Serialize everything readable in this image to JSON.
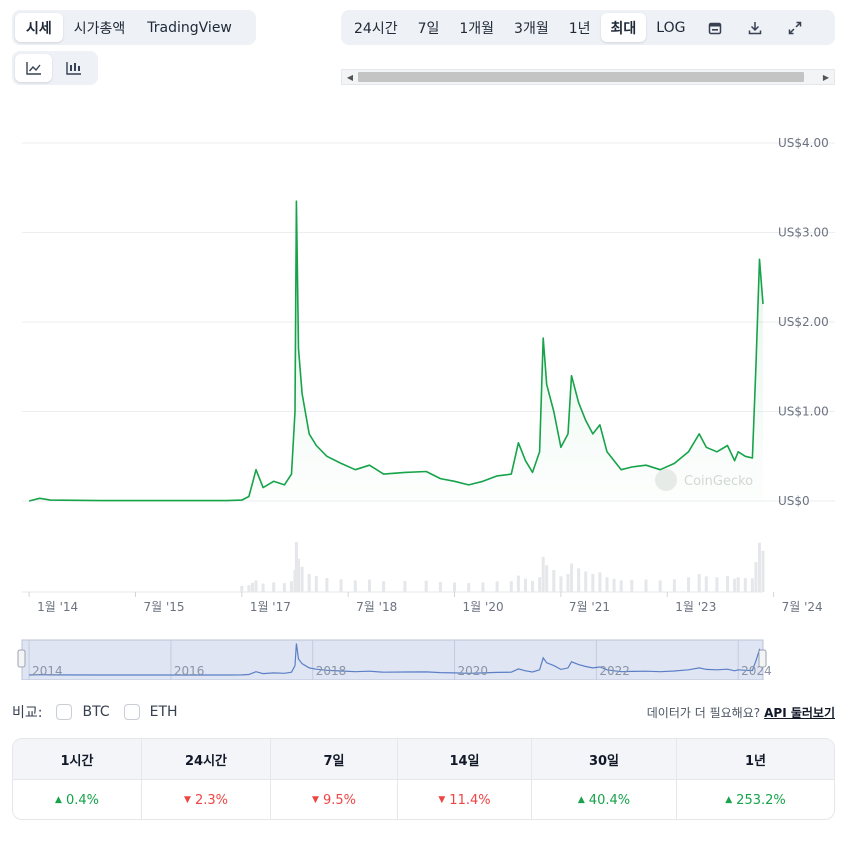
{
  "view_tabs": [
    "시세",
    "시가총액",
    "TradingView"
  ],
  "view_active": "시세",
  "chart_types": [
    {
      "icon": "line-chart-icon",
      "active": true
    },
    {
      "icon": "candlestick-chart-icon",
      "active": false
    }
  ],
  "range_tabs": [
    "24시간",
    "7일",
    "1개월",
    "3개월",
    "1년",
    "최대",
    "LOG"
  ],
  "range_active": "최대",
  "toolbar_icons": [
    "calendar-icon",
    "download-icon",
    "fullscreen-icon"
  ],
  "scroll_arrows": {
    "left": "◀",
    "right": "▶"
  },
  "watermark": "CoinGecko",
  "compare": {
    "label": "비교:",
    "options": [
      "BTC",
      "ETH"
    ],
    "more_text": "데이터가 더 필요해요?",
    "api_link": "API 둘러보기"
  },
  "performance": [
    {
      "period": "1시간",
      "change": "0.4%",
      "direction": "up"
    },
    {
      "period": "24시간",
      "change": "2.3%",
      "direction": "down"
    },
    {
      "period": "7일",
      "change": "9.5%",
      "direction": "down"
    },
    {
      "period": "14일",
      "change": "11.4%",
      "direction": "down"
    },
    {
      "period": "30일",
      "change": "40.4%",
      "direction": "up"
    },
    {
      "period": "1년",
      "change": "253.2%",
      "direction": "up"
    }
  ],
  "colors": {
    "line": "#16a34a",
    "volume": "#e5e7eb",
    "navigator_line": "#5b7fc7",
    "navigator_bg": "#dfe5f2",
    "up": "#16a34a",
    "down": "#ef4444"
  },
  "chart_data": {
    "type": "line",
    "series": [
      {
        "values": [
          [
            2014.0,
            0.0
          ],
          [
            2014.15,
            0.03
          ],
          [
            2014.3,
            0.01
          ],
          [
            2015.0,
            0.005
          ],
          [
            2016.0,
            0.005
          ],
          [
            2016.8,
            0.005
          ],
          [
            2017.0,
            0.01
          ],
          [
            2017.1,
            0.05
          ],
          [
            2017.15,
            0.2
          ],
          [
            2017.2,
            0.35
          ],
          [
            2017.3,
            0.15
          ],
          [
            2017.45,
            0.22
          ],
          [
            2017.6,
            0.18
          ],
          [
            2017.7,
            0.3
          ],
          [
            2017.75,
            1.0
          ],
          [
            2017.77,
            3.35
          ],
          [
            2017.8,
            1.7
          ],
          [
            2017.85,
            1.2
          ],
          [
            2017.95,
            0.75
          ],
          [
            2018.05,
            0.62
          ],
          [
            2018.2,
            0.5
          ],
          [
            2018.4,
            0.42
          ],
          [
            2018.6,
            0.35
          ],
          [
            2018.8,
            0.4
          ],
          [
            2019.0,
            0.3
          ],
          [
            2019.3,
            0.32
          ],
          [
            2019.6,
            0.33
          ],
          [
            2019.8,
            0.25
          ],
          [
            2020.0,
            0.22
          ],
          [
            2020.2,
            0.18
          ],
          [
            2020.4,
            0.22
          ],
          [
            2020.6,
            0.28
          ],
          [
            2020.8,
            0.3
          ],
          [
            2020.9,
            0.65
          ],
          [
            2021.0,
            0.45
          ],
          [
            2021.1,
            0.32
          ],
          [
            2021.2,
            0.55
          ],
          [
            2021.25,
            1.82
          ],
          [
            2021.3,
            1.3
          ],
          [
            2021.4,
            1.0
          ],
          [
            2021.5,
            0.6
          ],
          [
            2021.6,
            0.75
          ],
          [
            2021.65,
            1.4
          ],
          [
            2021.75,
            1.1
          ],
          [
            2021.85,
            0.9
          ],
          [
            2021.95,
            0.75
          ],
          [
            2022.05,
            0.85
          ],
          [
            2022.15,
            0.55
          ],
          [
            2022.25,
            0.45
          ],
          [
            2022.35,
            0.35
          ],
          [
            2022.5,
            0.38
          ],
          [
            2022.7,
            0.4
          ],
          [
            2022.9,
            0.35
          ],
          [
            2023.1,
            0.42
          ],
          [
            2023.3,
            0.55
          ],
          [
            2023.45,
            0.75
          ],
          [
            2023.55,
            0.6
          ],
          [
            2023.7,
            0.55
          ],
          [
            2023.85,
            0.62
          ],
          [
            2023.95,
            0.45
          ],
          [
            2024.0,
            0.55
          ],
          [
            2024.1,
            0.5
          ],
          [
            2024.2,
            0.48
          ],
          [
            2024.25,
            1.5
          ],
          [
            2024.3,
            2.7
          ],
          [
            2024.35,
            2.2
          ]
        ]
      }
    ],
    "y_ticks": [
      "US$0",
      "US$1.00",
      "US$2.00",
      "US$3.00",
      "US$4.00"
    ],
    "y_tick_values": [
      0,
      1,
      2,
      3,
      4
    ],
    "x_ticks": [
      {
        "label": "1월 '14",
        "x": 2014.0
      },
      {
        "label": "7월 '15",
        "x": 2015.5
      },
      {
        "label": "1월 '17",
        "x": 2017.0
      },
      {
        "label": "7월 '18",
        "x": 2018.5
      },
      {
        "label": "1월 '20",
        "x": 2020.0
      },
      {
        "label": "7월 '21",
        "x": 2021.5
      },
      {
        "label": "1월 '23",
        "x": 2023.0
      },
      {
        "label": "7월 '24",
        "x": 2024.5
      }
    ],
    "navigator_ticks": [
      {
        "label": "2014",
        "x": 2014
      },
      {
        "label": "2016",
        "x": 2016
      },
      {
        "label": "2018",
        "x": 2018
      },
      {
        "label": "2020",
        "x": 2020
      },
      {
        "label": "2022",
        "x": 2022
      },
      {
        "label": "2024",
        "x": 2024
      }
    ],
    "xlim": [
      2013.9,
      2024.35
    ],
    "ylim": [
      0,
      4
    ],
    "grid": true
  }
}
